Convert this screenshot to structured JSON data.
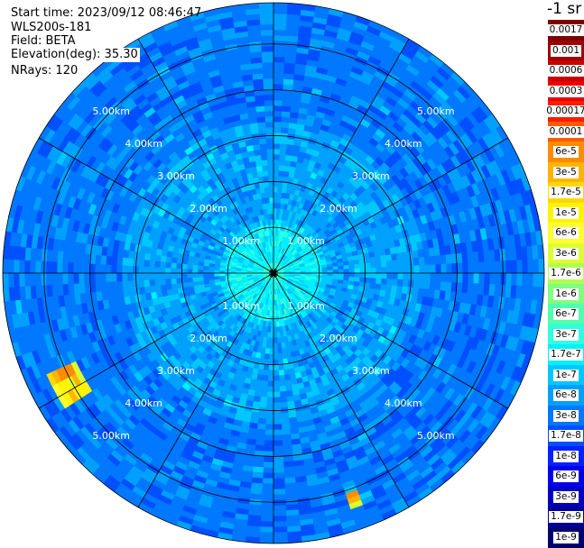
{
  "info": {
    "start_time": "Start time: 2023/09/12 08:46:47",
    "instrument": "WLS200s-181",
    "field": "Field: BETA",
    "elevation": "Elevation(deg): 35.30",
    "nrays": "NRays: 120"
  },
  "colorbar": {
    "unit_label": "-1 sr",
    "levels": [
      {
        "label": "0.0017",
        "color": "#7f0000"
      },
      {
        "label": "0.001",
        "color": "#a00000"
      },
      {
        "label": "0.0006",
        "color": "#c80000"
      },
      {
        "label": "0.0003",
        "color": "#ee0000"
      },
      {
        "label": "0.00017",
        "color": "#ff1a00"
      },
      {
        "label": "0.0001",
        "color": "#ff5a00"
      },
      {
        "label": "6e-5",
        "color": "#ff8c00"
      },
      {
        "label": "3e-5",
        "color": "#ffb400"
      },
      {
        "label": "1.7e-5",
        "color": "#ffd800"
      },
      {
        "label": "1e-5",
        "color": "#fff400"
      },
      {
        "label": "6e-6",
        "color": "#ffff30"
      },
      {
        "label": "3e-6",
        "color": "#dcff30"
      },
      {
        "label": "1.7e-6",
        "color": "#b0ff50"
      },
      {
        "label": "1e-6",
        "color": "#80ff80"
      },
      {
        "label": "6e-7",
        "color": "#50ffb0"
      },
      {
        "label": "3e-7",
        "color": "#30ffe0"
      },
      {
        "label": "1.7e-7",
        "color": "#00f0ff"
      },
      {
        "label": "1e-7",
        "color": "#00c8ff"
      },
      {
        "label": "6e-8",
        "color": "#00a0ff"
      },
      {
        "label": "3e-8",
        "color": "#0078ff"
      },
      {
        "label": "1.7e-8",
        "color": "#0050ff"
      },
      {
        "label": "1e-8",
        "color": "#0020ff"
      },
      {
        "label": "6e-9",
        "color": "#0000ee"
      },
      {
        "label": "3e-9",
        "color": "#0000c0"
      },
      {
        "label": "1.7e-9",
        "color": "#000098"
      },
      {
        "label": "1e-9",
        "color": "#00006e"
      }
    ]
  },
  "chart_data": {
    "type": "heatmap",
    "projection": "polar",
    "field": "BETA",
    "range_unit": "km",
    "range_max": 5.9,
    "range_rings": [
      1.0,
      2.0,
      3.0,
      4.0,
      5.0
    ],
    "range_tick_labels": [
      "1.00km",
      "2.00km",
      "3.00km",
      "4.00km",
      "5.00km"
    ],
    "spoke_angles_deg": [
      0,
      30,
      60,
      90,
      120,
      150,
      180,
      210,
      240,
      270,
      300,
      330
    ],
    "nrays": 120,
    "range_bins": 50,
    "radial_profile": [
      {
        "range_km": 0.0,
        "value": "3e-7"
      },
      {
        "range_km": 0.5,
        "value": "1.7e-7"
      },
      {
        "range_km": 1.0,
        "value": "1.7e-7"
      },
      {
        "range_km": 1.3,
        "value": "6e-8"
      },
      {
        "range_km": 2.5,
        "value": "6e-8"
      },
      {
        "range_km": 4.0,
        "value": "3e-8"
      },
      {
        "range_km": 5.9,
        "value": "3e-8"
      }
    ],
    "features": [
      {
        "description": "patch",
        "range_km": [
          4.7,
          5.4
        ],
        "bearing_deg": [
          237,
          246
        ],
        "peak_value": "6e-5"
      },
      {
        "description": "patch",
        "range_km": [
          5.1,
          5.4
        ],
        "bearing_deg": [
          158,
          162
        ],
        "peak_value": "6e-5"
      }
    ],
    "colors": {
      "grid": "#000000",
      "background": "#ffffff"
    }
  }
}
